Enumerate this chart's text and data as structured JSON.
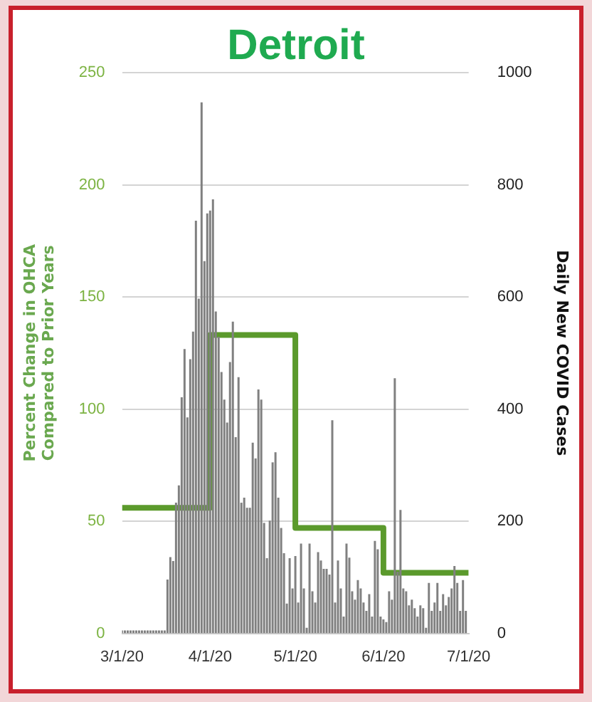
{
  "chart_data": {
    "type": "bar",
    "title": "Detroit",
    "ylabel": "Percent Change in OHCA\nCompared to Prior Years",
    "y2label": "Daily New COVID Cases",
    "x": [
      "2020-03-01",
      "2020-03-02",
      "2020-03-03",
      "2020-03-04",
      "2020-03-05",
      "2020-03-06",
      "2020-03-07",
      "2020-03-08",
      "2020-03-09",
      "2020-03-10",
      "2020-03-11",
      "2020-03-12",
      "2020-03-13",
      "2020-03-14",
      "2020-03-15",
      "2020-03-16",
      "2020-03-17",
      "2020-03-18",
      "2020-03-19",
      "2020-03-20",
      "2020-03-21",
      "2020-03-22",
      "2020-03-23",
      "2020-03-24",
      "2020-03-25",
      "2020-03-26",
      "2020-03-27",
      "2020-03-28",
      "2020-03-29",
      "2020-03-30",
      "2020-03-31",
      "2020-04-01",
      "2020-04-02",
      "2020-04-03",
      "2020-04-04",
      "2020-04-05",
      "2020-04-06",
      "2020-04-07",
      "2020-04-08",
      "2020-04-09",
      "2020-04-10",
      "2020-04-11",
      "2020-04-12",
      "2020-04-13",
      "2020-04-14",
      "2020-04-15",
      "2020-04-16",
      "2020-04-17",
      "2020-04-18",
      "2020-04-19",
      "2020-04-20",
      "2020-04-21",
      "2020-04-22",
      "2020-04-23",
      "2020-04-24",
      "2020-04-25",
      "2020-04-26",
      "2020-04-27",
      "2020-04-28",
      "2020-04-29",
      "2020-04-30",
      "2020-05-01",
      "2020-05-02",
      "2020-05-03",
      "2020-05-04",
      "2020-05-05",
      "2020-05-06",
      "2020-05-07",
      "2020-05-08",
      "2020-05-09",
      "2020-05-10",
      "2020-05-11",
      "2020-05-12",
      "2020-05-13",
      "2020-05-14",
      "2020-05-15",
      "2020-05-16",
      "2020-05-17",
      "2020-05-18",
      "2020-05-19",
      "2020-05-20",
      "2020-05-21",
      "2020-05-22",
      "2020-05-23",
      "2020-05-24",
      "2020-05-25",
      "2020-05-26",
      "2020-05-27",
      "2020-05-28",
      "2020-05-29",
      "2020-05-30",
      "2020-05-31",
      "2020-06-01",
      "2020-06-02",
      "2020-06-03",
      "2020-06-04",
      "2020-06-05",
      "2020-06-06",
      "2020-06-07",
      "2020-06-08",
      "2020-06-09",
      "2020-06-10",
      "2020-06-11",
      "2020-06-12",
      "2020-06-13",
      "2020-06-14",
      "2020-06-15",
      "2020-06-16",
      "2020-06-17",
      "2020-06-18",
      "2020-06-19",
      "2020-06-20",
      "2020-06-21",
      "2020-06-22",
      "2020-06-23",
      "2020-06-24",
      "2020-06-25",
      "2020-06-26",
      "2020-06-27",
      "2020-06-28",
      "2020-06-29",
      "2020-06-30"
    ],
    "series": [
      {
        "axis": "y2",
        "color": "#808080",
        "values": [
          0,
          0,
          0,
          0,
          0,
          0,
          0,
          0,
          0,
          3,
          0,
          3,
          3,
          0,
          3,
          3,
          96,
          136,
          129,
          233,
          264,
          421,
          507,
          385,
          489,
          538,
          736,
          597,
          947,
          664,
          749,
          754,
          774,
          574,
          529,
          466,
          417,
          376,
          484,
          556,
          350,
          457,
          233,
          242,
          224,
          224,
          340,
          312,
          435,
          417,
          197,
          134,
          201,
          305,
          323,
          242,
          188,
          143,
          53,
          134,
          80,
          138,
          55,
          160,
          80,
          10,
          160,
          75,
          55,
          145,
          130,
          115,
          115,
          105,
          380,
          55,
          130,
          80,
          30,
          160,
          135,
          75,
          60,
          95,
          80,
          55,
          40,
          70,
          30,
          165,
          150,
          30,
          25,
          20,
          75,
          60,
          455,
          110,
          220,
          80,
          75,
          50,
          60,
          45,
          30,
          50,
          45,
          10,
          90,
          40,
          55,
          90,
          40,
          70,
          50,
          65,
          80,
          120,
          90,
          40,
          95,
          40
        ]
      },
      {
        "type": "step",
        "color": "#5b9a2c",
        "x": [
          "2020-03-01",
          "2020-04-01",
          "2020-05-01",
          "2020-06-01",
          "2020-07-01"
        ],
        "values": [
          56,
          133,
          47,
          27,
          27
        ]
      }
    ],
    "xlim": [
      "2020-03-01",
      "2020-07-01"
    ],
    "xticks": [
      {
        "value": "2020-03-01",
        "label": "3/1/20"
      },
      {
        "value": "2020-04-01",
        "label": "4/1/20"
      },
      {
        "value": "2020-05-01",
        "label": "5/1/20"
      },
      {
        "value": "2020-06-01",
        "label": "6/1/20"
      },
      {
        "value": "2020-07-01",
        "label": "7/1/20"
      }
    ],
    "ylim": [
      0,
      250
    ],
    "yticks": [
      0,
      50,
      100,
      150,
      200,
      250
    ],
    "y2lim": [
      0,
      1000
    ],
    "y2ticks": [
      0,
      200,
      400,
      600,
      800,
      1000
    ],
    "grid": "y"
  }
}
